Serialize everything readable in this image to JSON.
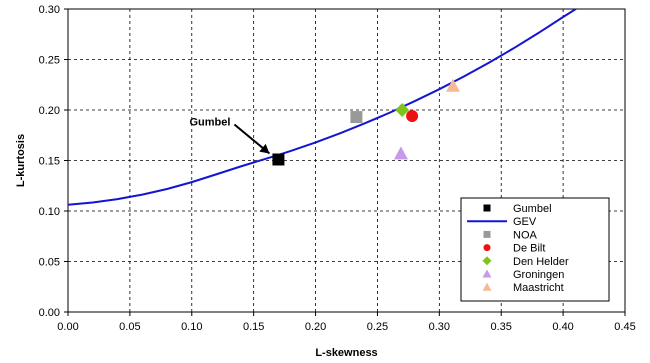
{
  "chart_data": {
    "type": "scatter",
    "xlabel": "L-skewness",
    "ylabel": "L-kurtosis",
    "xlim": [
      0,
      0.45
    ],
    "ylim": [
      0,
      0.3
    ],
    "x_ticks": [
      "0.00",
      "0.05",
      "0.10",
      "0.15",
      "0.20",
      "0.25",
      "0.30",
      "0.35",
      "0.40",
      "0.45"
    ],
    "y_ticks": [
      "0.00",
      "0.05",
      "0.10",
      "0.15",
      "0.20",
      "0.25",
      "0.30"
    ],
    "grid": "dashed",
    "legend_position": "bottom-right",
    "annotation": {
      "text": "Gumbel",
      "x": 0.17,
      "y": 0.151
    },
    "series": [
      {
        "name": "Gumbel",
        "kind": "point",
        "marker": "square",
        "color": "#000000",
        "points": [
          [
            0.17,
            0.151
          ]
        ]
      },
      {
        "name": "GEV",
        "kind": "line",
        "color": "#1414d2",
        "x": [
          0.0,
          0.02,
          0.04,
          0.06,
          0.08,
          0.1,
          0.12,
          0.14,
          0.16,
          0.17,
          0.18,
          0.2,
          0.22,
          0.24,
          0.26,
          0.28,
          0.3,
          0.32,
          0.34,
          0.36,
          0.38,
          0.4,
          0.42,
          0.43
        ],
        "y": [
          0.1062,
          0.1084,
          0.1118,
          0.1162,
          0.1218,
          0.1286,
          0.1364,
          0.1443,
          0.1518,
          0.1555,
          0.1595,
          0.1679,
          0.1771,
          0.1869,
          0.1974,
          0.2087,
          0.2206,
          0.2333,
          0.2468,
          0.2611,
          0.2762,
          0.2921,
          0.3075,
          0.313
        ]
      },
      {
        "name": "NOA",
        "kind": "point",
        "marker": "square",
        "color": "#999999",
        "points": [
          [
            0.233,
            0.193
          ]
        ]
      },
      {
        "name": "De Bilt",
        "kind": "point",
        "marker": "circle",
        "color": "#ee1111",
        "points": [
          [
            0.278,
            0.194
          ]
        ]
      },
      {
        "name": "Den Helder",
        "kind": "point",
        "marker": "diamond",
        "color": "#7fc31c",
        "points": [
          [
            0.27,
            0.2
          ]
        ]
      },
      {
        "name": "Groningen",
        "kind": "point",
        "marker": "triangle",
        "color": "#c59ae8",
        "points": [
          [
            0.269,
            0.157
          ]
        ]
      },
      {
        "name": "Maastricht",
        "kind": "point",
        "marker": "triangle",
        "color": "#f6b996",
        "points": [
          [
            0.311,
            0.224
          ]
        ]
      }
    ]
  }
}
